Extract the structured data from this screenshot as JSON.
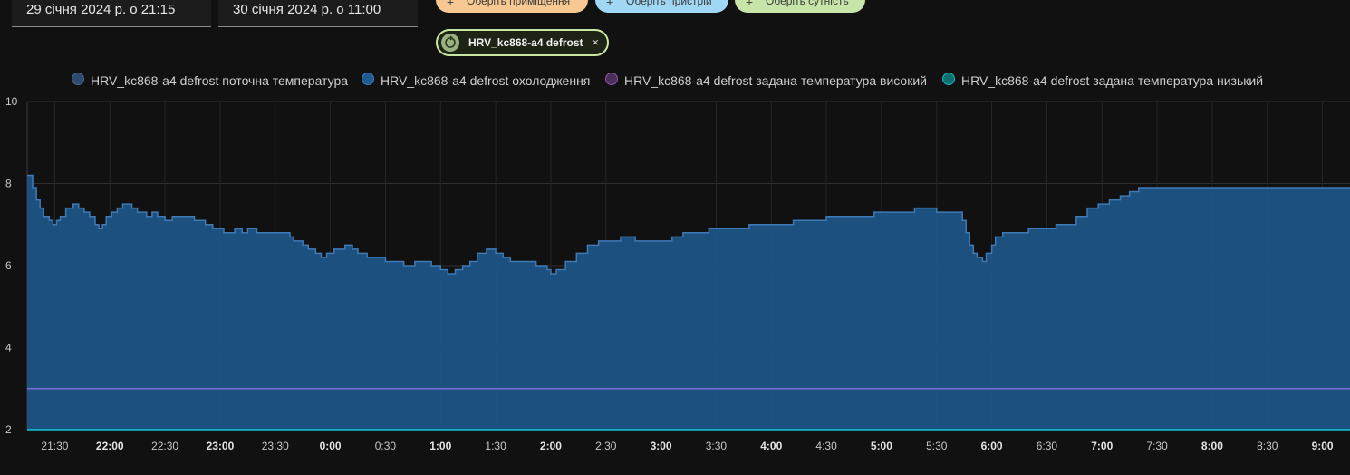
{
  "date_range": {
    "start": "29 січня 2024 р. о 21:15",
    "end": "30 січня 2024 р. о 11:00"
  },
  "target_pills": [
    {
      "label": "Оберіть приміщення",
      "color": "#f8c892"
    },
    {
      "label": "Оберіть пристрій",
      "color": "#9fd7f4"
    },
    {
      "label": "Оберіть сутність",
      "color": "#c7e4a9"
    }
  ],
  "selected_entity": {
    "label": "HRV_kc868-a4 defrost",
    "close_symbol": "×"
  },
  "chart_data": {
    "type": "area",
    "x_start": "21:15",
    "x_end": "9:15",
    "ylim": [
      2,
      10
    ],
    "yticks": [
      "2",
      "4",
      "6",
      "8",
      "10"
    ],
    "xticks": [
      {
        "label": "21:30",
        "bold": false
      },
      {
        "label": "22:00",
        "bold": true
      },
      {
        "label": "22:30",
        "bold": false
      },
      {
        "label": "23:00",
        "bold": true
      },
      {
        "label": "23:30",
        "bold": false
      },
      {
        "label": "0:00",
        "bold": true
      },
      {
        "label": "0:30",
        "bold": false
      },
      {
        "label": "1:00",
        "bold": true
      },
      {
        "label": "1:30",
        "bold": false
      },
      {
        "label": "2:00",
        "bold": true
      },
      {
        "label": "2:30",
        "bold": false
      },
      {
        "label": "3:00",
        "bold": true
      },
      {
        "label": "3:30",
        "bold": false
      },
      {
        "label": "4:00",
        "bold": true
      },
      {
        "label": "4:30",
        "bold": false
      },
      {
        "label": "5:00",
        "bold": true
      },
      {
        "label": "5:30",
        "bold": false
      },
      {
        "label": "6:00",
        "bold": true
      },
      {
        "label": "6:30",
        "bold": false
      },
      {
        "label": "7:00",
        "bold": true
      },
      {
        "label": "7:30",
        "bold": false
      },
      {
        "label": "8:00",
        "bold": true
      },
      {
        "label": "8:30",
        "bold": false
      },
      {
        "label": "9:00",
        "bold": true
      }
    ],
    "grid": true,
    "legend_position": "top",
    "series": [
      {
        "name": "HRV_kc868-a4 defrost поточна температура",
        "color": "#2c4b6e",
        "points": [
          [
            "21:15",
            8.2
          ],
          [
            "21:17",
            8.2
          ],
          [
            "21:18",
            7.9
          ],
          [
            "21:20",
            7.6
          ],
          [
            "21:22",
            7.4
          ],
          [
            "21:24",
            7.2
          ],
          [
            "21:27",
            7.1
          ],
          [
            "21:29",
            7.0
          ],
          [
            "21:31",
            7.1
          ],
          [
            "21:33",
            7.2
          ],
          [
            "21:36",
            7.4
          ],
          [
            "21:40",
            7.5
          ],
          [
            "21:43",
            7.4
          ],
          [
            "21:46",
            7.3
          ],
          [
            "21:49",
            7.2
          ],
          [
            "21:52",
            7.0
          ],
          [
            "21:54",
            6.9
          ],
          [
            "21:56",
            7.0
          ],
          [
            "21:58",
            7.2
          ],
          [
            "22:01",
            7.3
          ],
          [
            "22:04",
            7.4
          ],
          [
            "22:07",
            7.5
          ],
          [
            "22:12",
            7.4
          ],
          [
            "22:15",
            7.3
          ],
          [
            "22:20",
            7.2
          ],
          [
            "22:23",
            7.3
          ],
          [
            "22:26",
            7.2
          ],
          [
            "22:30",
            7.1
          ],
          [
            "22:34",
            7.2
          ],
          [
            "22:40",
            7.2
          ],
          [
            "22:46",
            7.1
          ],
          [
            "22:52",
            7.0
          ],
          [
            "22:56",
            6.9
          ],
          [
            "23:02",
            6.8
          ],
          [
            "23:08",
            6.9
          ],
          [
            "23:12",
            6.8
          ],
          [
            "23:15",
            6.9
          ],
          [
            "23:20",
            6.8
          ],
          [
            "23:35",
            6.8
          ],
          [
            "23:38",
            6.7
          ],
          [
            "23:40",
            6.6
          ],
          [
            "23:45",
            6.5
          ],
          [
            "23:48",
            6.4
          ],
          [
            "23:52",
            6.3
          ],
          [
            "23:55",
            6.2
          ],
          [
            "23:58",
            6.3
          ],
          [
            "0:02",
            6.4
          ],
          [
            "0:08",
            6.5
          ],
          [
            "0:12",
            6.4
          ],
          [
            "0:15",
            6.3
          ],
          [
            "0:20",
            6.2
          ],
          [
            "0:30",
            6.1
          ],
          [
            "0:40",
            6.0
          ],
          [
            "0:46",
            6.1
          ],
          [
            "0:52",
            6.1
          ],
          [
            "0:55",
            6.0
          ],
          [
            "0:58",
            6.0
          ],
          [
            "1:00",
            5.9
          ],
          [
            "1:04",
            5.8
          ],
          [
            "1:08",
            5.9
          ],
          [
            "1:12",
            6.0
          ],
          [
            "1:16",
            6.1
          ],
          [
            "1:20",
            6.3
          ],
          [
            "1:25",
            6.4
          ],
          [
            "1:30",
            6.3
          ],
          [
            "1:34",
            6.2
          ],
          [
            "1:38",
            6.1
          ],
          [
            "1:45",
            6.1
          ],
          [
            "1:52",
            6.0
          ],
          [
            "1:55",
            6.0
          ],
          [
            "1:58",
            5.9
          ],
          [
            "2:00",
            5.8
          ],
          [
            "2:03",
            5.9
          ],
          [
            "2:08",
            6.1
          ],
          [
            "2:14",
            6.3
          ],
          [
            "2:20",
            6.5
          ],
          [
            "2:26",
            6.6
          ],
          [
            "2:32",
            6.6
          ],
          [
            "2:38",
            6.7
          ],
          [
            "2:46",
            6.6
          ],
          [
            "2:50",
            6.6
          ],
          [
            "2:55",
            6.6
          ],
          [
            "3:00",
            6.6
          ],
          [
            "3:06",
            6.7
          ],
          [
            "3:12",
            6.8
          ],
          [
            "3:20",
            6.8
          ],
          [
            "3:26",
            6.9
          ],
          [
            "3:32",
            6.9
          ],
          [
            "3:40",
            6.9
          ],
          [
            "3:48",
            7.0
          ],
          [
            "3:55",
            7.0
          ],
          [
            "4:00",
            7.0
          ],
          [
            "4:06",
            7.0
          ],
          [
            "4:12",
            7.1
          ],
          [
            "4:18",
            7.1
          ],
          [
            "4:24",
            7.1
          ],
          [
            "4:30",
            7.2
          ],
          [
            "4:36",
            7.2
          ],
          [
            "4:42",
            7.2
          ],
          [
            "4:48",
            7.2
          ],
          [
            "4:56",
            7.3
          ],
          [
            "5:03",
            7.3
          ],
          [
            "5:10",
            7.3
          ],
          [
            "5:18",
            7.4
          ],
          [
            "5:24",
            7.4
          ],
          [
            "5:30",
            7.3
          ],
          [
            "5:38",
            7.3
          ],
          [
            "5:44",
            7.1
          ],
          [
            "5:46",
            6.8
          ],
          [
            "5:48",
            6.5
          ],
          [
            "5:50",
            6.3
          ],
          [
            "5:52",
            6.2
          ],
          [
            "5:55",
            6.1
          ],
          [
            "5:57",
            6.3
          ],
          [
            "6:00",
            6.5
          ],
          [
            "6:02",
            6.7
          ],
          [
            "6:06",
            6.8
          ],
          [
            "6:12",
            6.8
          ],
          [
            "6:20",
            6.9
          ],
          [
            "6:28",
            6.9
          ],
          [
            "6:35",
            7.0
          ],
          [
            "6:40",
            7.0
          ],
          [
            "6:46",
            7.2
          ],
          [
            "6:52",
            7.4
          ],
          [
            "6:58",
            7.5
          ],
          [
            "7:04",
            7.6
          ],
          [
            "7:10",
            7.7
          ],
          [
            "7:15",
            7.8
          ],
          [
            "7:20",
            7.9
          ],
          [
            "7:27",
            7.9
          ]
        ],
        "note_ignored": ""
      },
      {
        "name": "HRV_kc868-a4 defrost охолодження",
        "color": "#1f5a91",
        "constant": null
      },
      {
        "name": "HRV_kc868-a4 defrost задана температура високий",
        "color": "#5a3a6e",
        "constant": 3.0
      },
      {
        "name": "HRV_kc868-a4 defrost задана температура низький",
        "color": "#0aa6a6",
        "constant": 2.0
      }
    ]
  }
}
